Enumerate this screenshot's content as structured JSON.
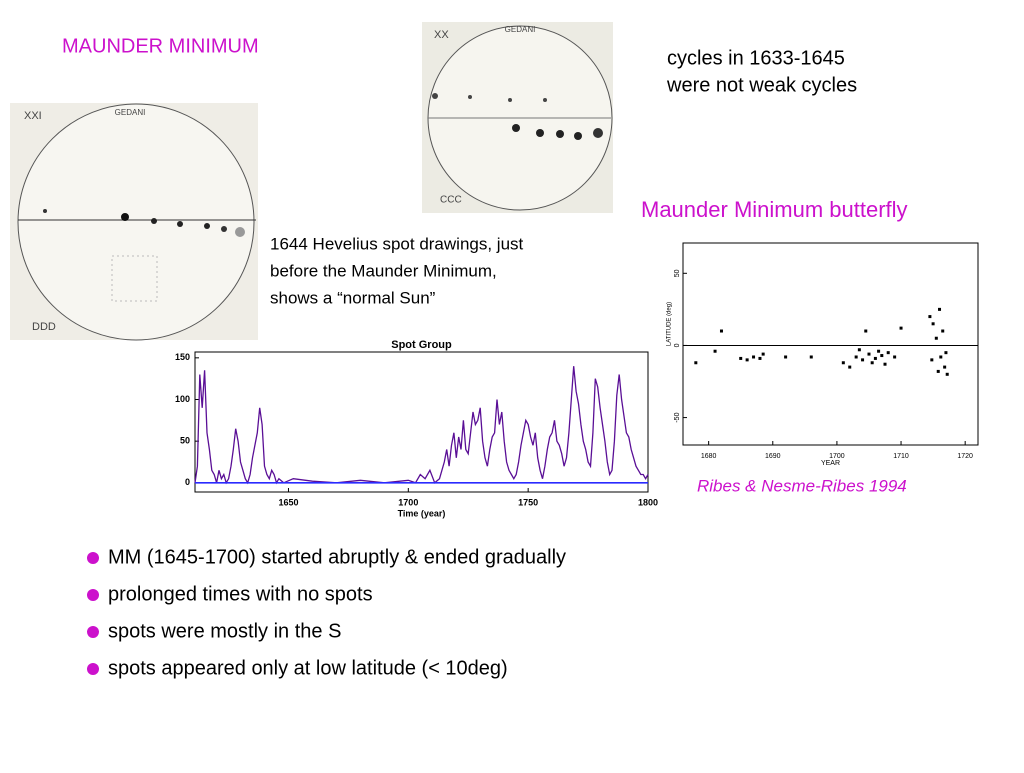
{
  "title": "MAUNDER MINIMUM",
  "note": [
    "cycles in 1633-1645",
    "were not weak cycles"
  ],
  "drawing_caption": [
    "1644 Hevelius spot drawings, just",
    "before the Maunder Minimum,",
    "shows a “normal Sun”"
  ],
  "drawings": [
    {
      "labels": [
        "XXI",
        "GEDANI",
        "DDD"
      ]
    },
    {
      "labels": [
        "XX",
        "GEDANI",
        "CCC"
      ]
    }
  ],
  "butterfly_title": "Maunder Minimum butterfly",
  "credit": "Ribes & Nesme-Ribes 1994",
  "bullets": [
    "MM (1645-1700) started abruptly & ended gradually",
    "prolonged times with no spots",
    "spots were mostly in the S",
    "spots appeared only at low latitude (< 10deg)"
  ],
  "chart_data": [
    {
      "type": "line",
      "title": "Spot Group",
      "x_label": "Time (year)",
      "xlim": [
        1611,
        1800
      ],
      "ylim": [
        -11,
        157
      ],
      "xticks": [
        1650,
        1700,
        1750,
        1800
      ],
      "yticks": [
        0,
        50,
        100,
        150
      ],
      "series": [
        {
          "color": "#5a0f96",
          "x": [
            1611,
            1612,
            1613,
            1614,
            1615,
            1616,
            1617,
            1618,
            1619,
            1620,
            1621,
            1622,
            1623,
            1624,
            1625,
            1626,
            1627,
            1628,
            1629,
            1630,
            1631,
            1632,
            1633,
            1634,
            1635,
            1636,
            1637,
            1638,
            1639,
            1640,
            1641,
            1642,
            1643,
            1644,
            1645,
            1646,
            1648,
            1652,
            1660,
            1670,
            1680,
            1690,
            1700,
            1703,
            1705,
            1707,
            1709,
            1711,
            1713,
            1715,
            1716,
            1717,
            1718,
            1719,
            1720,
            1721,
            1722,
            1723,
            1724,
            1725,
            1726,
            1727,
            1728,
            1729,
            1730,
            1731,
            1732,
            1733,
            1734,
            1735,
            1736,
            1737,
            1738,
            1739,
            1740,
            1741,
            1742,
            1743,
            1744,
            1745,
            1746,
            1747,
            1748,
            1749,
            1750,
            1751,
            1752,
            1753,
            1754,
            1755,
            1756,
            1757,
            1758,
            1759,
            1760,
            1761,
            1762,
            1763,
            1764,
            1765,
            1766,
            1767,
            1768,
            1769,
            1770,
            1771,
            1772,
            1773,
            1774,
            1775,
            1776,
            1777,
            1778,
            1779,
            1780,
            1781,
            1782,
            1783,
            1784,
            1785,
            1786,
            1787,
            1788,
            1789,
            1790,
            1791,
            1792,
            1793,
            1794,
            1795,
            1796,
            1797,
            1798,
            1799,
            1800
          ],
          "values": [
            0,
            20,
            130,
            90,
            135,
            60,
            40,
            15,
            10,
            0,
            15,
            5,
            10,
            0,
            5,
            20,
            40,
            65,
            50,
            25,
            15,
            5,
            0,
            10,
            30,
            45,
            60,
            90,
            70,
            20,
            10,
            5,
            15,
            10,
            0,
            5,
            0,
            5,
            2,
            0,
            3,
            0,
            3,
            0,
            10,
            5,
            15,
            0,
            5,
            25,
            40,
            20,
            45,
            60,
            30,
            55,
            40,
            75,
            40,
            35,
            60,
            85,
            70,
            75,
            90,
            50,
            30,
            20,
            40,
            55,
            60,
            100,
            70,
            85,
            50,
            25,
            15,
            10,
            5,
            10,
            25,
            45,
            60,
            75,
            70,
            55,
            45,
            60,
            30,
            15,
            5,
            20,
            40,
            55,
            60,
            75,
            50,
            45,
            35,
            20,
            30,
            60,
            100,
            140,
            110,
            95,
            70,
            50,
            40,
            25,
            20,
            60,
            125,
            115,
            90,
            70,
            50,
            25,
            10,
            15,
            50,
            105,
            130,
            100,
            80,
            60,
            55,
            40,
            30,
            20,
            15,
            10,
            10,
            5,
            10
          ]
        },
        {
          "color": "#2a2aff",
          "x": [
            1611,
            1800
          ],
          "values": [
            0,
            0
          ]
        }
      ]
    },
    {
      "type": "scatter",
      "x_label": "YEAR",
      "y_label": "LATITUDE (deg)",
      "xlim": [
        1676,
        1722
      ],
      "ylim": [
        -69,
        71
      ],
      "xticks": [
        1680,
        1690,
        1700,
        1710,
        1720
      ],
      "yticks": [
        50,
        0,
        -50
      ],
      "series": [
        {
          "color": "#000000",
          "x": [
            1678,
            1681,
            1682,
            1685,
            1686,
            1687,
            1688,
            1688.5,
            1692,
            1696,
            1701,
            1702,
            1703,
            1703.5,
            1704,
            1704.5,
            1705,
            1705.5,
            1706,
            1706.5,
            1707,
            1707.5,
            1708,
            1709,
            1710,
            1714.5,
            1715,
            1715.5,
            1716,
            1716.5,
            1717,
            1714.8,
            1715.8,
            1716.8,
            1717.2,
            1716.2
          ],
          "y": [
            -12,
            -4,
            10,
            -9,
            -10,
            -8,
            -9,
            -6,
            -8,
            -8,
            -12,
            -15,
            -8,
            -3,
            -10,
            10,
            -6,
            -12,
            -9,
            -4,
            -7,
            -13,
            -5,
            -8,
            12,
            20,
            15,
            5,
            25,
            10,
            -5,
            -10,
            -18,
            -15,
            -20,
            -8
          ]
        }
      ]
    }
  ]
}
